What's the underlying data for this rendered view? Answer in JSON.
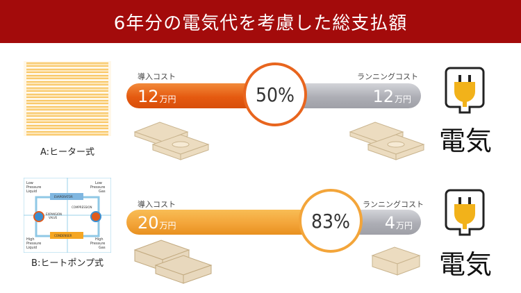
{
  "title": "6年分の電気代を考慮した総支払額",
  "rows": [
    {
      "label": "A:ヒーター式",
      "initial_label": "導入コスト",
      "initial_value": "12",
      "running_label": "ランニングコスト",
      "running_value": "12",
      "unit": "万円",
      "percent": "50%",
      "share": 0.5,
      "electric": "電気"
    },
    {
      "label": "B:ヒートポンプ式",
      "initial_label": "導入コスト",
      "initial_value": "20",
      "running_label": "ランニングコスト",
      "running_value": "4",
      "unit": "万円",
      "percent": "83%",
      "share": 0.83,
      "electric": "電気"
    }
  ],
  "diagram": {
    "low_pressure_liquid": "Low\nPressure\nLiquid",
    "low_pressure_gas": "Low\nPressure\nGas",
    "high_pressure_liquid": "High\nPressure\nLiquid",
    "high_pressure_gas": "High\nPressure\nGas",
    "evaporator": "EVAPORATOR",
    "compression": "COMPRESSION",
    "expansion": "EXPANSION\nVALVE",
    "condenser": "CONDENSER"
  },
  "colors": {
    "title_bg": "#a30b0b",
    "orange": "#e8651e",
    "light_orange": "#f3a53a",
    "gray": "#b5b6bd",
    "money": "#e8d8bd"
  }
}
